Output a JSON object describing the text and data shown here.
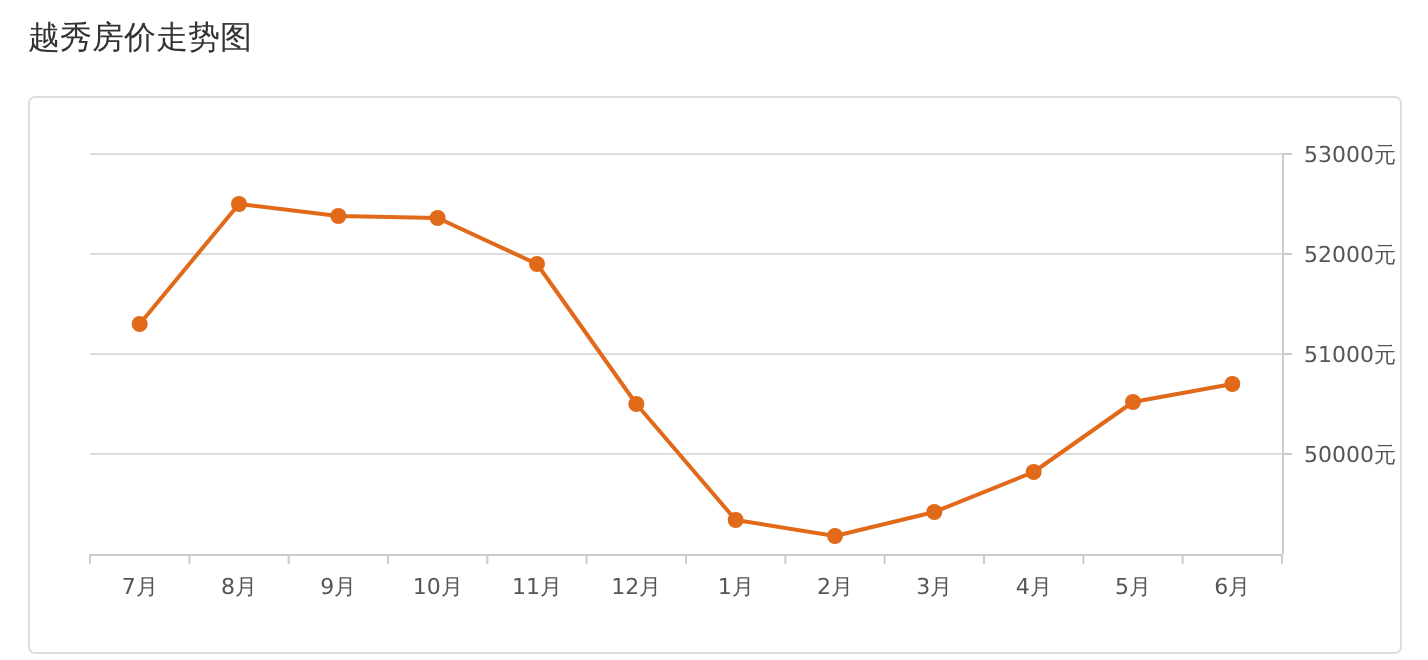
{
  "chart_data": {
    "type": "line",
    "title": "越秀房价走势图",
    "categories": [
      "7月",
      "8月",
      "9月",
      "10月",
      "11月",
      "12月",
      "1月",
      "2月",
      "3月",
      "4月",
      "5月",
      "6月"
    ],
    "series": [
      {
        "color": "#e0691a",
        "values": [
          51300,
          52500,
          52380,
          52360,
          51900,
          50500,
          49340,
          49180,
          49420,
          49820,
          50520,
          50700
        ]
      }
    ],
    "ylim": [
      49000,
      53000
    ],
    "yticks": [
      {
        "value": 50000,
        "label": "50000元"
      },
      {
        "value": 51000,
        "label": "51000元"
      },
      {
        "value": 52000,
        "label": "52000元"
      },
      {
        "value": 53000,
        "label": "53000元"
      }
    ],
    "grid": "y",
    "marker": "circle",
    "line_style": "solid"
  }
}
